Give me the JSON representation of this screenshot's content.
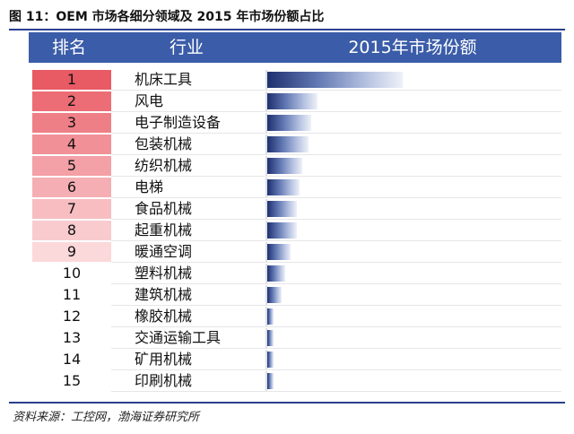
{
  "figure": {
    "title": "图 11：OEM 市场各细分领域及 2015 年市场份额占比",
    "source": "资料来源：工控网，渤海证券研究所"
  },
  "table": {
    "headers": {
      "rank": "排名",
      "industry": "行业",
      "share": "2015年市场份额"
    },
    "rank_colors": [
      "#e85a64",
      "#ec6d75",
      "#ef7f86",
      "#f19097",
      "#f3a0a6",
      "#f5afb4",
      "#f7bdc1",
      "#f9cbce",
      "#fbd8da",
      "#ffffff",
      "#ffffff",
      "#ffffff",
      "#ffffff",
      "#ffffff",
      "#ffffff"
    ]
  },
  "chart_data": {
    "type": "bar",
    "orientation": "horizontal",
    "title": "2015年市场份额",
    "categories": [
      "机床工具",
      "风电",
      "电子制造设备",
      "包装机械",
      "纺织机械",
      "电梯",
      "食品机械",
      "起重机械",
      "暖通空调",
      "塑料机械",
      "建筑机械",
      "橡胶机械",
      "交通运输工具",
      "矿用机械",
      "印刷机械"
    ],
    "ranks": [
      "1",
      "2",
      "3",
      "4",
      "5",
      "6",
      "7",
      "8",
      "9",
      "10",
      "11",
      "12",
      "13",
      "14",
      "15"
    ],
    "values": [
      0.46,
      0.17,
      0.15,
      0.14,
      0.12,
      0.11,
      0.1,
      0.1,
      0.08,
      0.06,
      0.05,
      0.02,
      0.02,
      0.02,
      0.02
    ],
    "xlim": [
      0,
      1
    ],
    "value_note_units": "fraction of share-column width (no axis printed)"
  }
}
